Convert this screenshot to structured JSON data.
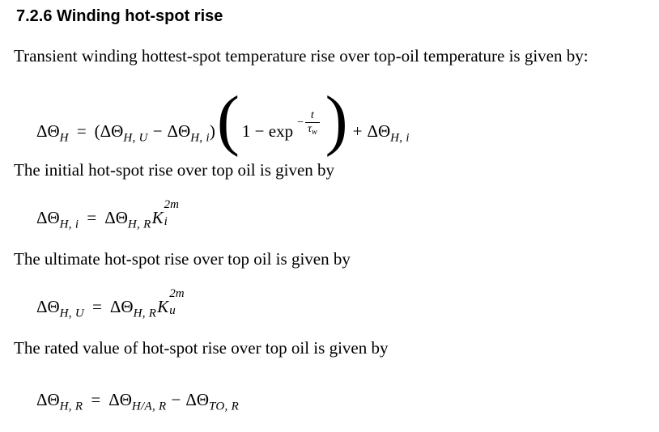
{
  "page": {
    "background": "#ffffff",
    "text_color": "#000000"
  },
  "heading": {
    "number_and_title": "7.2.6 Winding hot-spot rise"
  },
  "paragraphs": {
    "transient": "Transient winding hottest-spot temperature rise over top-oil temperature is given by:",
    "initial": "The initial hot-spot rise over top oil is given by",
    "ultimate": "The ultimate hot-spot rise over top oil is given by",
    "rated": "The rated value of hot-spot rise over top oil is given by"
  },
  "equations": {
    "transient_hotspot": {
      "lhs_base": "ΔΘ",
      "lhs_sub": "H",
      "equals": "=",
      "open_paren": "(",
      "ultimate_base": "ΔΘ",
      "ultimate_sub": "H, U",
      "minus": "−",
      "initial_base": "ΔΘ",
      "initial_sub": "H, i",
      "close_paren": ")",
      "big_open_paren": "(",
      "one_minus_exp": "1 − exp",
      "exponent_minus": "−",
      "exponent_numerator": "t",
      "exponent_denominator_base": "τ",
      "exponent_denominator_sub": "w",
      "big_close_paren": ")",
      "plus": "+",
      "tail_base": "ΔΘ",
      "tail_sub": "H, i"
    },
    "initial_hotspot": {
      "lhs_base": "ΔΘ",
      "lhs_sub": "H, i",
      "equals": "=",
      "rhs_base": "ΔΘ",
      "rhs_sub": "H, R",
      "k_base": "K",
      "k_sup": "2m",
      "k_sub": "i"
    },
    "ultimate_hotspot": {
      "lhs_base": "ΔΘ",
      "lhs_sub": "H, U",
      "equals": "=",
      "rhs_base": "ΔΘ",
      "rhs_sub": "H, R",
      "k_base": "K",
      "k_sup": "2m",
      "k_sub": "u"
    },
    "rated_hotspot": {
      "lhs_base": "ΔΘ",
      "lhs_sub": "H, R",
      "equals": "=",
      "term1_base": "ΔΘ",
      "term1_sub": "H/A, R",
      "minus": "−",
      "term2_base": "ΔΘ",
      "term2_sub": "TO, R"
    }
  }
}
